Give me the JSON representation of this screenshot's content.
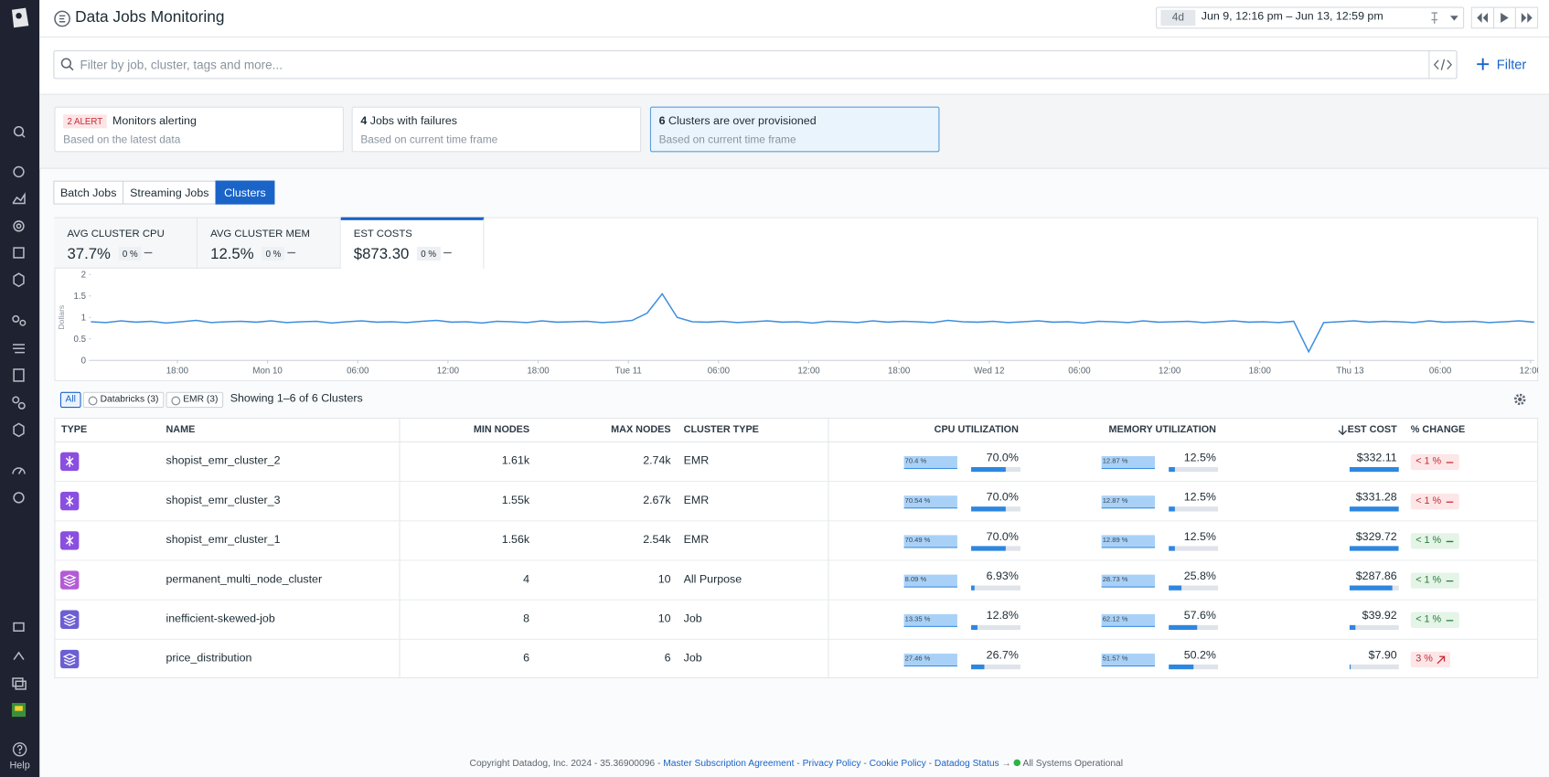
{
  "sidebar": {
    "help": "Help"
  },
  "header": {
    "title": "Data Jobs Monitoring",
    "range_badge": "4d",
    "time_range": "Jun 9, 12:16 pm – Jun 13, 12:59 pm"
  },
  "search": {
    "placeholder": "Filter by job, cluster, tags and more...",
    "filter_button": "Filter"
  },
  "summary_cards": [
    {
      "badge": "2 ALERT",
      "title": "Monitors alerting",
      "subtitle": "Based on the latest data",
      "selected": false
    },
    {
      "count": "4",
      "title": "Jobs with failures",
      "subtitle": "Based on current time frame",
      "selected": false
    },
    {
      "count": "6",
      "title": "Clusters are over provisioned",
      "subtitle": "Based on current time frame",
      "selected": true
    }
  ],
  "tabs": [
    "Batch Jobs",
    "Streaming Jobs",
    "Clusters"
  ],
  "active_tab": 2,
  "metrics": [
    {
      "label": "AVG CLUSTER CPU",
      "value": "37.7%",
      "change": "0 %"
    },
    {
      "label": "AVG CLUSTER MEM",
      "value": "12.5%",
      "change": "0 %"
    },
    {
      "label": "EST COSTS",
      "value": "$873.30",
      "change": "0 %"
    }
  ],
  "active_metric": 2,
  "chart_data": {
    "type": "line",
    "y_label": "Dollars",
    "color": "#3d8fe0",
    "ylim": [
      0,
      2
    ],
    "yticks": [
      0,
      0.5,
      1,
      1.5,
      2
    ],
    "xlim": [
      0,
      96
    ],
    "xticks": [
      {
        "value": 5.75,
        "label": "18:00"
      },
      {
        "value": 11.75,
        "label": "Mon 10"
      },
      {
        "value": 17.75,
        "label": "06:00"
      },
      {
        "value": 23.75,
        "label": "12:00"
      },
      {
        "value": 29.75,
        "label": "18:00"
      },
      {
        "value": 35.75,
        "label": "Tue 11"
      },
      {
        "value": 41.75,
        "label": "06:00"
      },
      {
        "value": 47.75,
        "label": "12:00"
      },
      {
        "value": 53.75,
        "label": "18:00"
      },
      {
        "value": 59.75,
        "label": "Wed 12"
      },
      {
        "value": 65.75,
        "label": "06:00"
      },
      {
        "value": 71.75,
        "label": "12:00"
      },
      {
        "value": 77.75,
        "label": "18:00"
      },
      {
        "value": 83.75,
        "label": "Thu 13"
      },
      {
        "value": 89.75,
        "label": "06:00"
      },
      {
        "value": 95.75,
        "label": "12:00"
      }
    ],
    "values": [
      0.9,
      0.88,
      0.92,
      0.89,
      0.91,
      0.87,
      0.9,
      0.93,
      0.88,
      0.9,
      0.91,
      0.89,
      0.92,
      0.88,
      0.9,
      0.91,
      0.87,
      0.9,
      0.92,
      0.89,
      0.9,
      0.88,
      0.91,
      0.93,
      0.89,
      0.9,
      0.87,
      0.91,
      0.9,
      0.88,
      0.92,
      0.89,
      0.9,
      0.91,
      0.88,
      0.9,
      0.93,
      1.1,
      1.55,
      1.0,
      0.9,
      0.89,
      0.91,
      0.88,
      0.9,
      0.92,
      0.89,
      0.9,
      0.87,
      0.91,
      0.9,
      0.88,
      0.92,
      0.89,
      0.91,
      0.9,
      0.88,
      0.93,
      0.9,
      0.89,
      0.91,
      0.88,
      0.9,
      0.92,
      0.89,
      0.9,
      0.87,
      0.91,
      0.9,
      0.88,
      0.92,
      0.89,
      0.9,
      0.91,
      0.88,
      0.9,
      0.92,
      0.89,
      0.9,
      0.88,
      0.91,
      0.2,
      0.88,
      0.9,
      0.92,
      0.89,
      0.91,
      0.9,
      0.88,
      0.92,
      0.89,
      0.9,
      0.91,
      0.88,
      0.9,
      0.92,
      0.89
    ]
  },
  "table_filters": {
    "chips": [
      "All",
      "Databricks (3)",
      "EMR (3)"
    ],
    "active_chip": 0,
    "showing": "Showing 1–6 of 6 Clusters"
  },
  "table": {
    "columns": [
      "TYPE",
      "NAME",
      "MIN NODES",
      "MAX NODES",
      "CLUSTER TYPE",
      "CPU UTILIZATION",
      "MEMORY UTILIZATION",
      "EST COST",
      "% CHANGE"
    ],
    "sort": {
      "column": 7,
      "direction": "desc"
    },
    "rows": [
      {
        "platform": "emr",
        "color": "#8a4fe0",
        "name": "shopist_emr_cluster_2",
        "min_nodes": "1.61k",
        "max_nodes": "2.74k",
        "cluster_type": "EMR",
        "cpu_spark": "70.4 %",
        "cpu": {
          "value": 70.0,
          "label": "70.0%"
        },
        "mem_spark": "12.87 %",
        "mem": {
          "value": 12.5,
          "label": "12.5%"
        },
        "cost": {
          "value": 332.11,
          "label": "$332.11"
        },
        "change": {
          "label": "< 1 %",
          "status": "bad",
          "trend": "flat"
        }
      },
      {
        "platform": "emr",
        "color": "#8a4fe0",
        "name": "shopist_emr_cluster_3",
        "min_nodes": "1.55k",
        "max_nodes": "2.67k",
        "cluster_type": "EMR",
        "cpu_spark": "70.54 %",
        "cpu": {
          "value": 70.0,
          "label": "70.0%"
        },
        "mem_spark": "12.87 %",
        "mem": {
          "value": 12.5,
          "label": "12.5%"
        },
        "cost": {
          "value": 331.28,
          "label": "$331.28"
        },
        "change": {
          "label": "< 1 %",
          "status": "bad",
          "trend": "flat"
        }
      },
      {
        "platform": "emr",
        "color": "#8a4fe0",
        "name": "shopist_emr_cluster_1",
        "min_nodes": "1.56k",
        "max_nodes": "2.54k",
        "cluster_type": "EMR",
        "cpu_spark": "70.49 %",
        "cpu": {
          "value": 70.0,
          "label": "70.0%"
        },
        "mem_spark": "12.89 %",
        "mem": {
          "value": 12.5,
          "label": "12.5%"
        },
        "cost": {
          "value": 329.72,
          "label": "$329.72"
        },
        "change": {
          "label": "< 1 %",
          "status": "good",
          "trend": "flat"
        }
      },
      {
        "platform": "databricks",
        "color": "#b35bd6",
        "name": "permanent_multi_node_cluster",
        "min_nodes": "4",
        "max_nodes": "10",
        "cluster_type": "All Purpose",
        "cpu_spark": "8.09 %",
        "cpu": {
          "value": 6.93,
          "label": "6.93%"
        },
        "mem_spark": "28.73 %",
        "mem": {
          "value": 25.8,
          "label": "25.8%"
        },
        "cost": {
          "value": 287.86,
          "label": "$287.86"
        },
        "change": {
          "label": "< 1 %",
          "status": "good",
          "trend": "flat"
        }
      },
      {
        "platform": "databricks",
        "color": "#6c5fd3",
        "name": "inefficient-skewed-job",
        "min_nodes": "8",
        "max_nodes": "10",
        "cluster_type": "Job",
        "cpu_spark": "13.35 %",
        "cpu": {
          "value": 12.8,
          "label": "12.8%"
        },
        "mem_spark": "62.12 %",
        "mem": {
          "value": 57.6,
          "label": "57.6%"
        },
        "cost": {
          "value": 39.92,
          "label": "$39.92"
        },
        "change": {
          "label": "< 1 %",
          "status": "good",
          "trend": "flat"
        }
      },
      {
        "platform": "databricks",
        "color": "#6c5fd3",
        "name": "price_distribution",
        "min_nodes": "6",
        "max_nodes": "6",
        "cluster_type": "Job",
        "cpu_spark": "27.46 %",
        "cpu": {
          "value": 26.7,
          "label": "26.7%"
        },
        "mem_spark": "51.57 %",
        "mem": {
          "value": 50.2,
          "label": "50.2%"
        },
        "cost": {
          "value": 7.9,
          "label": "$7.90"
        },
        "change": {
          "label": "3 %",
          "status": "bad",
          "trend": "up"
        }
      }
    ]
  },
  "footer": {
    "copyright": "Copyright Datadog, Inc. 2024 - 35.36900096 -",
    "links": [
      "Master Subscription Agreement",
      "Privacy Policy",
      "Cookie Policy",
      "Datadog Status"
    ],
    "separator": " - ",
    "arrow": "→",
    "status": "All Systems Operational"
  }
}
